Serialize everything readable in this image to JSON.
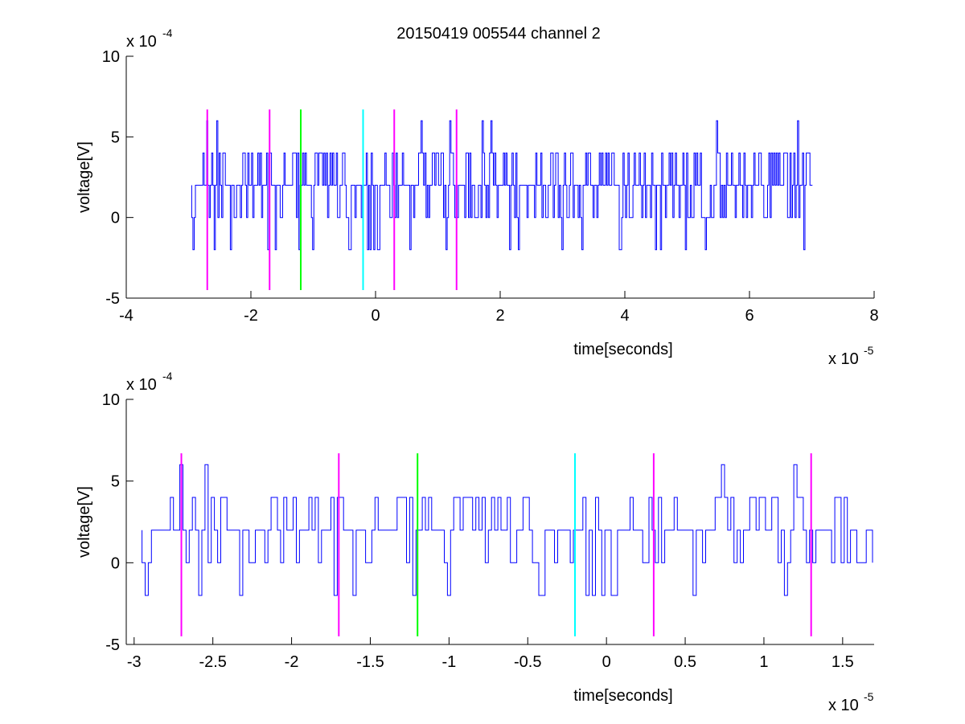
{
  "figure_title": "20150419 005544 channel 2",
  "colors": {
    "signal": "#0000ff",
    "marker_magenta": "#ff00ff",
    "marker_green": "#00ff00",
    "marker_cyan": "#00ffff",
    "axes": "#000000",
    "background": "#ffffff"
  },
  "chart_data": [
    {
      "type": "line",
      "title": "20150419 005544 channel 2",
      "xlabel": "time[seconds]",
      "ylabel": "voltage[V]",
      "x_exponent_label": "x 10",
      "x_exponent": "-5",
      "y_exponent_label": "x 10",
      "y_exponent": "-4",
      "xlim": [
        -4,
        8
      ],
      "ylim": [
        -5,
        10
      ],
      "xticks": [
        -4,
        -2,
        0,
        2,
        4,
        6,
        8
      ],
      "xtick_labels": [
        "-4",
        "-2",
        "0",
        "2",
        "4",
        "6",
        "8"
      ],
      "yticks": [
        -5,
        0,
        5,
        10
      ],
      "ytick_labels": [
        "-5",
        "0",
        "5",
        "10"
      ],
      "grid": false,
      "series": [
        {
          "kind": "noise_trace",
          "color": "#0000ff",
          "x_start": -2.95,
          "x_end": 7.02,
          "step": 0.02,
          "levels": [
            -2,
            0,
            2,
            4,
            6
          ],
          "baseline": 2
        }
      ],
      "markers": [
        {
          "x": -2.7,
          "color": "#ff00ff",
          "y_range": [
            -4.5,
            6.7
          ]
        },
        {
          "x": -1.7,
          "color": "#ff00ff",
          "y_range": [
            -4.5,
            6.7
          ]
        },
        {
          "x": -1.2,
          "color": "#00ff00",
          "y_range": [
            -4.5,
            6.7
          ]
        },
        {
          "x": -0.2,
          "color": "#00ffff",
          "y_range": [
            -4.5,
            6.7
          ]
        },
        {
          "x": 0.3,
          "color": "#ff00ff",
          "y_range": [
            -4.5,
            6.7
          ]
        },
        {
          "x": 1.3,
          "color": "#ff00ff",
          "y_range": [
            -4.5,
            6.7
          ]
        }
      ]
    },
    {
      "type": "line",
      "xlabel": "time[seconds]",
      "ylabel": "voltage[V]",
      "x_exponent_label": "x 10",
      "x_exponent": "-5",
      "y_exponent_label": "x 10",
      "y_exponent": "-4",
      "xlim": [
        -3.05,
        1.7
      ],
      "ylim": [
        -5,
        10
      ],
      "xticks": [
        -3,
        -2.5,
        -2,
        -1.5,
        -1,
        -0.5,
        0,
        0.5,
        1,
        1.5
      ],
      "xtick_labels": [
        "-3",
        "-2.5",
        "-2",
        "-1.5",
        "-1",
        "-0.5",
        "0",
        "0.5",
        "1",
        "1.5"
      ],
      "yticks": [
        -5,
        0,
        5,
        10
      ],
      "ytick_labels": [
        "-5",
        "0",
        "5",
        "10"
      ],
      "grid": false,
      "series": [
        {
          "kind": "noise_trace",
          "color": "#0000ff",
          "x_start": -2.95,
          "x_end": 1.7,
          "step": 0.02,
          "levels": [
            -2,
            0,
            2,
            4,
            6
          ],
          "baseline": 2
        }
      ],
      "markers": [
        {
          "x": -2.7,
          "color": "#ff00ff",
          "y_range": [
            -4.5,
            6.7
          ]
        },
        {
          "x": -1.7,
          "color": "#ff00ff",
          "y_range": [
            -4.5,
            6.7
          ]
        },
        {
          "x": -1.2,
          "color": "#00ff00",
          "y_range": [
            -4.5,
            6.7
          ]
        },
        {
          "x": -0.2,
          "color": "#00ffff",
          "y_range": [
            -4.5,
            6.7
          ]
        },
        {
          "x": 0.3,
          "color": "#ff00ff",
          "y_range": [
            -4.5,
            6.7
          ]
        },
        {
          "x": 1.3,
          "color": "#ff00ff",
          "y_range": [
            -4.5,
            6.7
          ]
        }
      ]
    }
  ]
}
